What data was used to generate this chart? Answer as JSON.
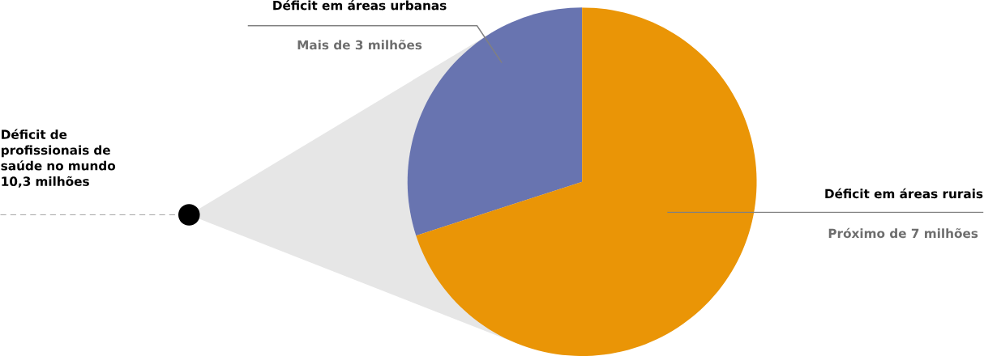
{
  "chart_data": {
    "type": "pie",
    "categories": [
      "Déficit em áreas urbanas",
      "Déficit em áreas rurais"
    ],
    "values": [
      3,
      7
    ],
    "colors": [
      "#6874b0",
      "#ea9506"
    ],
    "value_labels": [
      "Mais de 3 milhões",
      "Próximo de 7 milhões"
    ],
    "annotations": [
      "Déficit de profissionais de saúde no mundo 10,3 milhões"
    ]
  }
}
